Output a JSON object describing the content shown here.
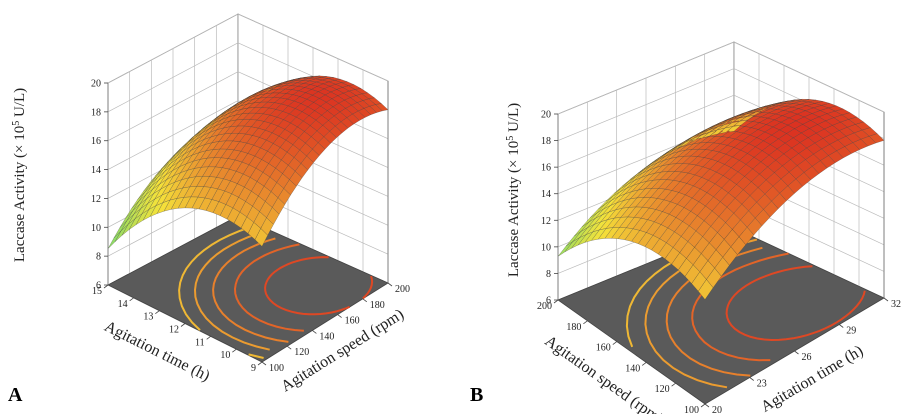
{
  "chart_data": [
    {
      "type": "surface3d",
      "panel_label": "A",
      "zlabel_prefix": "Laccase Activity (× 10",
      "zlabel_exp": "5",
      "zlabel_suffix": " U/L)",
      "zticks": [
        "6",
        "8",
        "10",
        "12",
        "14",
        "16",
        "18",
        "20"
      ],
      "zlim": [
        6,
        20
      ],
      "xlabel": "Agitation speed (rpm)",
      "xticks": [
        "100",
        "120",
        "140",
        "160",
        "180",
        "200"
      ],
      "xlim": [
        100,
        200
      ],
      "ylabel": "Agitation time (h)",
      "yticks": [
        "9",
        "10",
        "11",
        "12",
        "13",
        "14",
        "15"
      ],
      "ylim": [
        9,
        15
      ],
      "surface": {
        "peak_z": 19.2,
        "peak_x": 175,
        "peak_y": 13.5
      },
      "colors": {
        "low": "#3fd98a",
        "mid": "#f5e23a",
        "high": "#d81e1e"
      }
    },
    {
      "type": "surface3d",
      "panel_label": "B",
      "zlabel_prefix": "Laccase Activity (× 10",
      "zlabel_exp": "5",
      "zlabel_suffix": " U/L)",
      "zticks": [
        "6",
        "8",
        "10",
        "12",
        "14",
        "16",
        "18",
        "20"
      ],
      "zlim": [
        6,
        20
      ],
      "xlabel": "Agitation time (h)",
      "xticks": [
        "20",
        "23",
        "26",
        "29",
        "32"
      ],
      "xlim": [
        20,
        32
      ],
      "ylabel": "Agitation speed (rpm)",
      "yticks": [
        "100",
        "120",
        "140",
        "160",
        "180",
        "200"
      ],
      "ylim": [
        100,
        200
      ],
      "surface": {
        "peak_z": 19.3,
        "peak_x": 28.5,
        "peak_y": 175
      },
      "colors": {
        "low": "#3fd98a",
        "mid": "#f5e23a",
        "high": "#d81e1e"
      }
    }
  ]
}
